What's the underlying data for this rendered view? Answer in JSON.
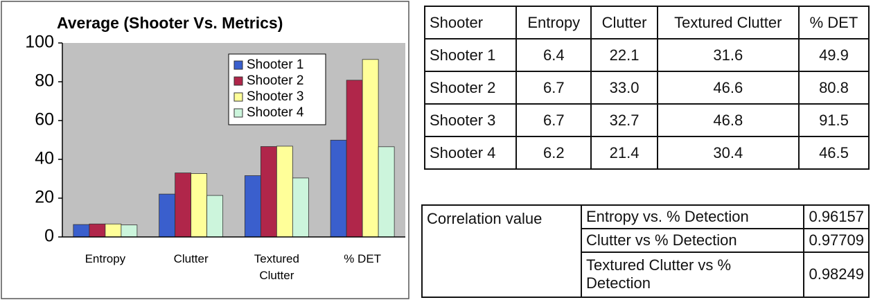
{
  "chart_data": {
    "type": "bar",
    "title": "Average (Shooter Vs. Metrics)",
    "categories": [
      "Entropy",
      "Clutter",
      "Textured Clutter",
      "% DET"
    ],
    "series": [
      {
        "name": "Shooter 1",
        "color": "#3a5fcd",
        "values": [
          6.4,
          22.1,
          31.6,
          49.9
        ]
      },
      {
        "name": "Shooter 2",
        "color": "#b0264a",
        "values": [
          6.7,
          33.0,
          46.6,
          80.8
        ]
      },
      {
        "name": "Shooter 3",
        "color": "#ffff99",
        "values": [
          6.7,
          32.7,
          46.8,
          91.5
        ]
      },
      {
        "name": "Shooter 4",
        "color": "#ccf5dc",
        "values": [
          6.2,
          21.4,
          30.4,
          46.5
        ]
      }
    ],
    "ylim": [
      0,
      100
    ],
    "yticks": [
      0,
      20,
      40,
      60,
      80,
      100
    ],
    "grid": false
  },
  "table": {
    "header": [
      "Shooter",
      "Entropy",
      "Clutter",
      "Textured Clutter",
      "% DET"
    ],
    "rows": [
      [
        "Shooter 1",
        "6.4",
        "22.1",
        "31.6",
        "49.9"
      ],
      [
        "Shooter 2",
        "6.7",
        "33.0",
        "46.6",
        "80.8"
      ],
      [
        "Shooter 3",
        "6.7",
        "32.7",
        "46.8",
        "91.5"
      ],
      [
        "Shooter 4",
        "6.2",
        "21.4",
        "30.4",
        "46.5"
      ]
    ]
  },
  "correlation": {
    "label": "Correlation value",
    "rows": [
      [
        "Entropy vs.  % Detection",
        "0.96157"
      ],
      [
        "Clutter vs % Detection",
        "0.97709"
      ],
      [
        "Textured Clutter vs % Detection",
        "0.98249"
      ]
    ]
  }
}
